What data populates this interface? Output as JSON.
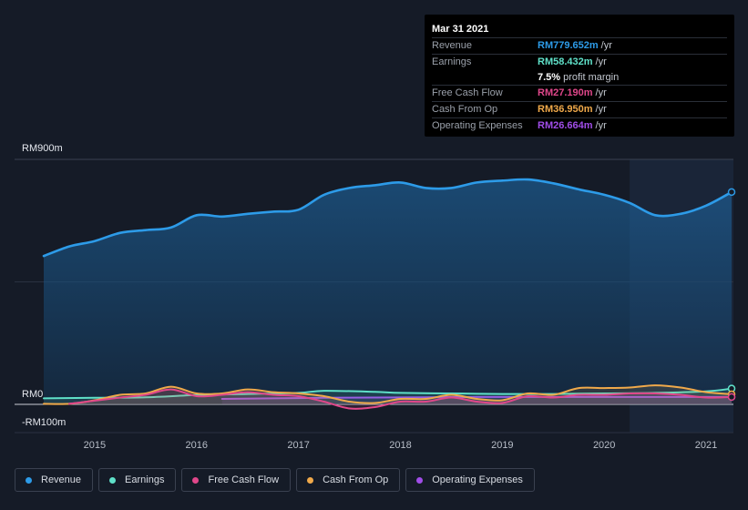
{
  "tooltip": {
    "date": "Mar 31 2021",
    "rows": [
      {
        "label": "Revenue",
        "value": "RM779.652m",
        "unit": "/yr",
        "color": "#2d9be8"
      },
      {
        "label": "Earnings",
        "value": "RM58.432m",
        "unit": "/yr",
        "color": "#5fe0c8"
      },
      {
        "label": "",
        "value": "7.5%",
        "unit": "profit margin",
        "color": "#ffffff"
      },
      {
        "label": "Free Cash Flow",
        "value": "RM27.190m",
        "unit": "/yr",
        "color": "#e0478a"
      },
      {
        "label": "Cash From Op",
        "value": "RM36.950m",
        "unit": "/yr",
        "color": "#f0a94a"
      },
      {
        "label": "Operating Expenses",
        "value": "RM26.664m",
        "unit": "/yr",
        "color": "#a04de8"
      }
    ]
  },
  "legend": [
    {
      "label": "Revenue",
      "color": "#2d9be8"
    },
    {
      "label": "Earnings",
      "color": "#5fe0c8"
    },
    {
      "label": "Free Cash Flow",
      "color": "#e0478a"
    },
    {
      "label": "Cash From Op",
      "color": "#f0a94a"
    },
    {
      "label": "Operating Expenses",
      "color": "#a04de8"
    }
  ],
  "chart_data": {
    "type": "line",
    "title": "",
    "xlabel": "",
    "ylabel": "",
    "ylim": [
      -100,
      900
    ],
    "y_tick_labels": [
      {
        "value": 900,
        "label": "RM900m"
      },
      {
        "value": 0,
        "label": "RM0"
      },
      {
        "value": -100,
        "label": "-RM100m"
      }
    ],
    "xlim": [
      2014.5,
      2021.25
    ],
    "x_ticks": [
      2015,
      2016,
      2017,
      2018,
      2019,
      2020,
      2021
    ],
    "x_tick_labels": [
      "2015",
      "2016",
      "2017",
      "2018",
      "2019",
      "2020",
      "2021"
    ],
    "highlight_from": 2020.25,
    "grid": true,
    "legend_position": "bottom",
    "series": [
      {
        "name": "Revenue",
        "color": "#2d9be8",
        "x": [
          2014.5,
          2014.75,
          2015.0,
          2015.25,
          2015.5,
          2015.75,
          2016.0,
          2016.25,
          2016.5,
          2016.75,
          2017.0,
          2017.25,
          2017.5,
          2017.75,
          2018.0,
          2018.25,
          2018.5,
          2018.75,
          2019.0,
          2019.25,
          2019.5,
          2019.75,
          2020.0,
          2020.25,
          2020.5,
          2020.75,
          2021.0,
          2021.25
        ],
        "y": [
          545,
          580,
          600,
          630,
          640,
          650,
          695,
          690,
          700,
          708,
          715,
          770,
          795,
          805,
          815,
          795,
          795,
          815,
          822,
          826,
          812,
          790,
          770,
          740,
          695,
          700,
          730,
          780
        ]
      },
      {
        "name": "Earnings",
        "color": "#5fe0c8",
        "x": [
          2014.5,
          2015.0,
          2015.5,
          2016.0,
          2016.5,
          2017.0,
          2017.25,
          2017.75,
          2018.0,
          2018.5,
          2019.0,
          2019.5,
          2020.0,
          2020.5,
          2021.0,
          2021.25
        ],
        "y": [
          22,
          24,
          26,
          34,
          38,
          42,
          50,
          46,
          42,
          40,
          38,
          38,
          40,
          42,
          48,
          58
        ]
      },
      {
        "name": "Free Cash Flow",
        "color": "#e0478a",
        "x": [
          2014.75,
          2015.25,
          2015.5,
          2015.75,
          2016.0,
          2016.25,
          2016.5,
          2016.75,
          2017.0,
          2017.25,
          2017.5,
          2017.75,
          2018.0,
          2018.25,
          2018.5,
          2018.75,
          2019.0,
          2019.25,
          2019.5,
          2019.75,
          2020.0,
          2020.25,
          2020.5,
          2020.75,
          2021.0,
          2021.25
        ],
        "y": [
          2,
          25,
          35,
          55,
          30,
          35,
          45,
          35,
          30,
          10,
          -15,
          -10,
          10,
          10,
          25,
          10,
          5,
          30,
          25,
          35,
          35,
          40,
          40,
          35,
          25,
          27
        ]
      },
      {
        "name": "Cash From Op",
        "color": "#f0a94a",
        "x": [
          2014.5,
          2014.75,
          2015.0,
          2015.25,
          2015.5,
          2015.75,
          2016.0,
          2016.25,
          2016.5,
          2016.75,
          2017.0,
          2017.25,
          2017.5,
          2017.75,
          2018.0,
          2018.25,
          2018.5,
          2018.75,
          2019.0,
          2019.25,
          2019.5,
          2019.75,
          2020.0,
          2020.25,
          2020.5,
          2020.75,
          2021.0,
          2021.25
        ],
        "y": [
          2,
          2,
          15,
          35,
          40,
          65,
          40,
          40,
          55,
          45,
          40,
          30,
          10,
          5,
          20,
          20,
          35,
          20,
          15,
          40,
          35,
          60,
          60,
          62,
          70,
          62,
          45,
          37
        ]
      },
      {
        "name": "Operating Expenses",
        "color": "#a04de8",
        "x": [
          2016.25,
          2016.75,
          2017.25,
          2017.75,
          2018.25,
          2018.75,
          2019.25,
          2019.75,
          2020.25,
          2020.75,
          2021.25
        ],
        "y": [
          20,
          22,
          24,
          25,
          26,
          27,
          27,
          27,
          27,
          27,
          27
        ]
      }
    ]
  }
}
